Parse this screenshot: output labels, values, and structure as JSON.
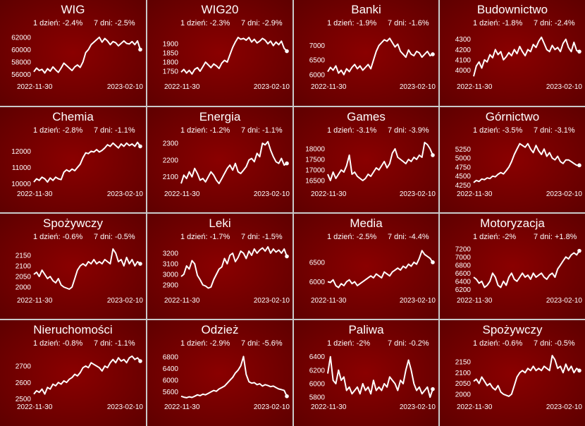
{
  "theme": {
    "bg_dark": "#5c0000",
    "bg_light": "#8a0000",
    "line": "#ffffff",
    "grid": "#c9c9c9"
  },
  "chart_data": [
    {
      "type": "line",
      "title": "WIG",
      "stat_1d": "1 dzień: -2.4%",
      "stat_7d": "7 dni: -2.5%",
      "date_start": "2022-11-30",
      "date_end": "2023-02-10",
      "ylim": [
        55000,
        63000
      ],
      "yticks": [
        "56000",
        "58000",
        "60000",
        "62000"
      ],
      "ytick_values": [
        56000,
        58000,
        60000,
        62000
      ],
      "values": [
        56400,
        57000,
        56600,
        56800,
        56200,
        56900,
        56500,
        57200,
        56700,
        56300,
        57000,
        57800,
        57400,
        57000,
        56600,
        57200,
        57500,
        57100,
        58000,
        59500,
        60000,
        60800,
        61200,
        61600,
        62000,
        61200,
        61800,
        61400,
        60800,
        61300,
        61100,
        60600,
        61000,
        61400,
        61000,
        60900,
        61300,
        60800,
        61400,
        60000
      ]
    },
    {
      "type": "line",
      "title": "WIG20",
      "stat_1d": "1 dzień: -2.3%",
      "stat_7d": "7 dni: -2.9%",
      "date_start": "2022-11-30",
      "date_end": "2023-02-10",
      "ylim": [
        1700,
        1970
      ],
      "yticks": [
        "1750",
        "1800",
        "1850",
        "1900"
      ],
      "ytick_values": [
        1750,
        1800,
        1850,
        1900
      ],
      "values": [
        1745,
        1760,
        1740,
        1755,
        1735,
        1760,
        1770,
        1750,
        1775,
        1800,
        1785,
        1770,
        1790,
        1780,
        1765,
        1795,
        1810,
        1800,
        1840,
        1880,
        1910,
        1935,
        1925,
        1930,
        1920,
        1935,
        1910,
        1925,
        1905,
        1915,
        1930,
        1920,
        1900,
        1915,
        1890,
        1910,
        1895,
        1915,
        1875,
        1860
      ]
    },
    {
      "type": "line",
      "title": "Banki",
      "stat_1d": "1 dzień: -1.9%",
      "stat_7d": "7 dni: -1.6%",
      "date_start": "2022-11-30",
      "date_end": "2023-02-10",
      "ylim": [
        5800,
        7500
      ],
      "yticks": [
        "6000",
        "6500",
        "7000"
      ],
      "ytick_values": [
        6000,
        6500,
        7000
      ],
      "values": [
        6100,
        6250,
        6150,
        6300,
        6050,
        6150,
        6000,
        6200,
        6100,
        6250,
        6350,
        6200,
        6300,
        6150,
        6250,
        6350,
        6200,
        6500,
        6800,
        7000,
        7100,
        7200,
        7150,
        7250,
        7100,
        6950,
        7050,
        6800,
        6700,
        6600,
        6850,
        6700,
        6650,
        6800,
        6750,
        6600,
        6700,
        6800,
        6650,
        6700
      ]
    },
    {
      "type": "line",
      "title": "Budownictwo",
      "stat_1d": "1 dzień: -1.8%",
      "stat_7d": "7 dni: -2.4%",
      "date_start": "2022-11-30",
      "date_end": "2023-02-10",
      "ylim": [
        3900,
        4380
      ],
      "yticks": [
        "4000",
        "4100",
        "4200",
        "4300"
      ],
      "ytick_values": [
        4000,
        4100,
        4200,
        4300
      ],
      "values": [
        3940,
        4040,
        4080,
        4020,
        4100,
        4080,
        4150,
        4120,
        4200,
        4150,
        4180,
        4100,
        4130,
        4170,
        4140,
        4200,
        4160,
        4230,
        4180,
        4140,
        4200,
        4180,
        4250,
        4220,
        4280,
        4320,
        4260,
        4200,
        4180,
        4240,
        4200,
        4220,
        4180,
        4260,
        4300,
        4220,
        4180,
        4270,
        4190,
        4180
      ]
    },
    {
      "type": "line",
      "title": "Chemia",
      "stat_1d": "1 dzień: -2.8%",
      "stat_7d": "7 dni: -1.1%",
      "date_start": "2022-11-30",
      "date_end": "2023-02-10",
      "ylim": [
        9800,
        12800
      ],
      "yticks": [
        "10000",
        "11000",
        "12000"
      ],
      "ytick_values": [
        10000,
        11000,
        12000
      ],
      "values": [
        10100,
        10300,
        10200,
        10400,
        10300,
        10100,
        10350,
        10200,
        10400,
        10300,
        10250,
        10700,
        10850,
        10750,
        10900,
        10800,
        11000,
        11200,
        11600,
        11900,
        11850,
        12000,
        11950,
        12100,
        11950,
        12050,
        12200,
        12400,
        12300,
        12500,
        12350,
        12200,
        12450,
        12300,
        12500,
        12350,
        12450,
        12300,
        12550,
        12300
      ]
    },
    {
      "type": "line",
      "title": "Energia",
      "stat_1d": "1 dzień: -1.2%",
      "stat_7d": "7 dni: -1.1%",
      "date_start": "2022-11-30",
      "date_end": "2023-02-10",
      "ylim": [
        2040,
        2330
      ],
      "yticks": [
        "2100",
        "2200",
        "2300"
      ],
      "ytick_values": [
        2100,
        2200,
        2300
      ],
      "values": [
        2060,
        2110,
        2090,
        2130,
        2100,
        2150,
        2120,
        2080,
        2090,
        2070,
        2100,
        2130,
        2110,
        2080,
        2060,
        2090,
        2120,
        2150,
        2170,
        2140,
        2180,
        2130,
        2120,
        2140,
        2160,
        2200,
        2210,
        2190,
        2240,
        2220,
        2300,
        2290,
        2310,
        2260,
        2220,
        2190,
        2180,
        2210,
        2170,
        2180
      ]
    },
    {
      "type": "line",
      "title": "Games",
      "stat_1d": "1 dzień: -3.1%",
      "stat_7d": "7 dni: -3.9%",
      "date_start": "2022-11-30",
      "date_end": "2023-02-10",
      "ylim": [
        16200,
        18500
      ],
      "yticks": [
        "16500",
        "17000",
        "17500",
        "18000"
      ],
      "ytick_values": [
        16500,
        17000,
        17500,
        18000
      ],
      "values": [
        16800,
        16500,
        16900,
        16600,
        16800,
        17000,
        16900,
        17200,
        17700,
        16800,
        16900,
        16700,
        16600,
        16500,
        16600,
        16800,
        16700,
        16900,
        17100,
        17000,
        17200,
        17400,
        17100,
        17300,
        17800,
        18000,
        17600,
        17500,
        17400,
        17300,
        17500,
        17400,
        17600,
        17500,
        17700,
        17600,
        18300,
        18200,
        18000,
        17700
      ]
    },
    {
      "type": "line",
      "title": "Górnictwo",
      "stat_1d": "1 dzień: -3.5%",
      "stat_7d": "7 dni: -3.1%",
      "date_start": "2022-11-30",
      "date_end": "2023-02-10",
      "ylim": [
        4200,
        5550
      ],
      "yticks": [
        "4250",
        "4500",
        "4750",
        "5000",
        "5250"
      ],
      "ytick_values": [
        4250,
        4500,
        4750,
        5000,
        5250
      ],
      "values": [
        4320,
        4380,
        4350,
        4420,
        4400,
        4450,
        4430,
        4500,
        4480,
        4550,
        4600,
        4560,
        4650,
        4750,
        4900,
        5100,
        5250,
        5400,
        5350,
        5300,
        5400,
        5250,
        5150,
        5350,
        5200,
        5100,
        5250,
        5050,
        5150,
        5000,
        4950,
        5050,
        4900,
        4850,
        4950,
        4950,
        4900,
        4850,
        4800,
        4800
      ]
    },
    {
      "type": "line",
      "title": "Spożywczy",
      "stat_1d": "1 dzień: -0.6%",
      "stat_7d": "7 dni: -0.5%",
      "date_start": "2022-11-30",
      "date_end": "2023-02-10",
      "ylim": [
        1970,
        2200
      ],
      "yticks": [
        "2000",
        "2050",
        "2100",
        "2150"
      ],
      "ytick_values": [
        2000,
        2050,
        2100,
        2150
      ],
      "values": [
        2060,
        2070,
        2050,
        2080,
        2060,
        2040,
        2050,
        2030,
        2020,
        2040,
        2010,
        2000,
        1995,
        1990,
        2000,
        2040,
        2080,
        2100,
        2110,
        2100,
        2120,
        2110,
        2130,
        2110,
        2120,
        2110,
        2130,
        2120,
        2110,
        2180,
        2160,
        2120,
        2130,
        2100,
        2140,
        2110,
        2130,
        2100,
        2120,
        2110
      ]
    },
    {
      "type": "line",
      "title": "Leki",
      "stat_1d": "1 dzień: -1.7%",
      "stat_7d": "7 dni: -1.5%",
      "date_start": "2022-11-30",
      "date_end": "2023-02-10",
      "ylim": [
        2820,
        3280
      ],
      "yticks": [
        "2900",
        "3000",
        "3100",
        "3200"
      ],
      "ytick_values": [
        2900,
        3000,
        3100,
        3200
      ],
      "values": [
        2980,
        3000,
        3080,
        3050,
        3130,
        3100,
        2990,
        2950,
        2900,
        2890,
        2870,
        2880,
        2950,
        3000,
        3050,
        3070,
        3150,
        3100,
        3180,
        3200,
        3120,
        3160,
        3220,
        3200,
        3150,
        3220,
        3180,
        3240,
        3200,
        3230,
        3250,
        3220,
        3260,
        3200,
        3240,
        3210,
        3230,
        3200,
        3240,
        3170
      ]
    },
    {
      "type": "line",
      "title": "Media",
      "stat_1d": "1 dzień: -2.5%",
      "stat_7d": "7 dni: -4.4%",
      "date_start": "2022-11-30",
      "date_end": "2023-02-10",
      "ylim": [
        5700,
        6950
      ],
      "yticks": [
        "6000",
        "6500"
      ],
      "ytick_values": [
        6000,
        6500
      ],
      "values": [
        6000,
        5980,
        6050,
        5900,
        5850,
        5950,
        5900,
        6000,
        6050,
        5950,
        6000,
        5900,
        5950,
        6000,
        6050,
        6100,
        6150,
        6100,
        6200,
        6150,
        6100,
        6250,
        6200,
        6150,
        6250,
        6300,
        6350,
        6300,
        6400,
        6350,
        6450,
        6400,
        6500,
        6450,
        6600,
        6800,
        6700,
        6650,
        6600,
        6500
      ]
    },
    {
      "type": "line",
      "title": "Motoryzacja",
      "stat_1d": "1 dzień: -2%",
      "stat_7d": "7 dni: +1.8%",
      "date_start": "2022-11-30",
      "date_end": "2023-02-10",
      "ylim": [
        6100,
        7300
      ],
      "yticks": [
        "6200",
        "6400",
        "6600",
        "6800",
        "7000",
        "7200"
      ],
      "ytick_values": [
        6200,
        6400,
        6600,
        6800,
        7000,
        7200
      ],
      "values": [
        6500,
        6450,
        6350,
        6400,
        6250,
        6300,
        6400,
        6600,
        6500,
        6300,
        6250,
        6400,
        6300,
        6500,
        6600,
        6450,
        6400,
        6500,
        6600,
        6500,
        6550,
        6450,
        6600,
        6500,
        6550,
        6600,
        6500,
        6450,
        6550,
        6600,
        6500,
        6700,
        6800,
        6900,
        7000,
        6950,
        7050,
        7100,
        7050,
        7150
      ]
    },
    {
      "type": "line",
      "title": "Nieruchomości",
      "stat_1d": "1 dzień: -0.8%",
      "stat_7d": "7 dni: -1.1%",
      "date_start": "2022-11-30",
      "date_end": "2023-02-10",
      "ylim": [
        2490,
        2790
      ],
      "yticks": [
        "2500",
        "2600",
        "2700"
      ],
      "ytick_values": [
        2500,
        2600,
        2700
      ],
      "values": [
        2530,
        2550,
        2540,
        2560,
        2530,
        2570,
        2560,
        2590,
        2580,
        2600,
        2590,
        2610,
        2600,
        2620,
        2630,
        2650,
        2640,
        2660,
        2690,
        2700,
        2690,
        2720,
        2710,
        2700,
        2690,
        2670,
        2700,
        2690,
        2720,
        2740,
        2720,
        2750,
        2730,
        2740,
        2720,
        2750,
        2760,
        2740,
        2750,
        2730
      ]
    },
    {
      "type": "line",
      "title": "Odzież",
      "stat_1d": "1 dzień: -2.9%",
      "stat_7d": "7 dni: -5.6%",
      "date_start": "2022-11-30",
      "date_end": "2023-02-10",
      "ylim": [
        5300,
        7000
      ],
      "yticks": [
        "5600",
        "6000",
        "6400",
        "6800"
      ],
      "ytick_values": [
        5600,
        6000,
        6400,
        6800
      ],
      "values": [
        5450,
        5420,
        5400,
        5430,
        5410,
        5450,
        5500,
        5470,
        5520,
        5500,
        5550,
        5600,
        5650,
        5620,
        5700,
        5750,
        5800,
        5900,
        6000,
        6100,
        6250,
        6350,
        6500,
        6820,
        6200,
        5950,
        5900,
        5920,
        5850,
        5880,
        5800,
        5850,
        5820,
        5780,
        5800,
        5750,
        5700,
        5680,
        5650,
        5450
      ]
    },
    {
      "type": "line",
      "title": "Paliwa",
      "stat_1d": "1 dzień: -2%",
      "stat_7d": "7 dni: -0.2%",
      "date_start": "2022-11-30",
      "date_end": "2023-02-10",
      "ylim": [
        5750,
        6480
      ],
      "yticks": [
        "5800",
        "6000",
        "6200",
        "6400"
      ],
      "ytick_values": [
        5800,
        6000,
        6200,
        6400
      ],
      "values": [
        6150,
        6400,
        6050,
        6000,
        6200,
        6050,
        6100,
        5900,
        5950,
        5850,
        5900,
        5950,
        5850,
        6000,
        5900,
        5950,
        5850,
        6050,
        5900,
        5950,
        5900,
        6000,
        5950,
        6100,
        6050,
        6000,
        5900,
        6050,
        6000,
        6200,
        6350,
        6200,
        6000,
        5900,
        5950,
        5850,
        5900,
        5950,
        5800,
        5920
      ]
    },
    {
      "type": "line",
      "title": "Spożywczy",
      "stat_1d": "1 dzień: -0.6%",
      "stat_7d": "7 dni: -0.5%",
      "date_start": "2022-11-30",
      "date_end": "2023-02-10",
      "ylim": [
        1970,
        2200
      ],
      "yticks": [
        "2000",
        "2050",
        "2100",
        "2150"
      ],
      "ytick_values": [
        2000,
        2050,
        2100,
        2150
      ],
      "values": [
        2060,
        2070,
        2050,
        2080,
        2060,
        2040,
        2050,
        2030,
        2020,
        2040,
        2010,
        2000,
        1995,
        1990,
        2000,
        2040,
        2080,
        2100,
        2110,
        2100,
        2120,
        2110,
        2130,
        2110,
        2120,
        2110,
        2130,
        2120,
        2110,
        2180,
        2160,
        2120,
        2130,
        2100,
        2140,
        2110,
        2130,
        2100,
        2120,
        2110
      ]
    }
  ]
}
